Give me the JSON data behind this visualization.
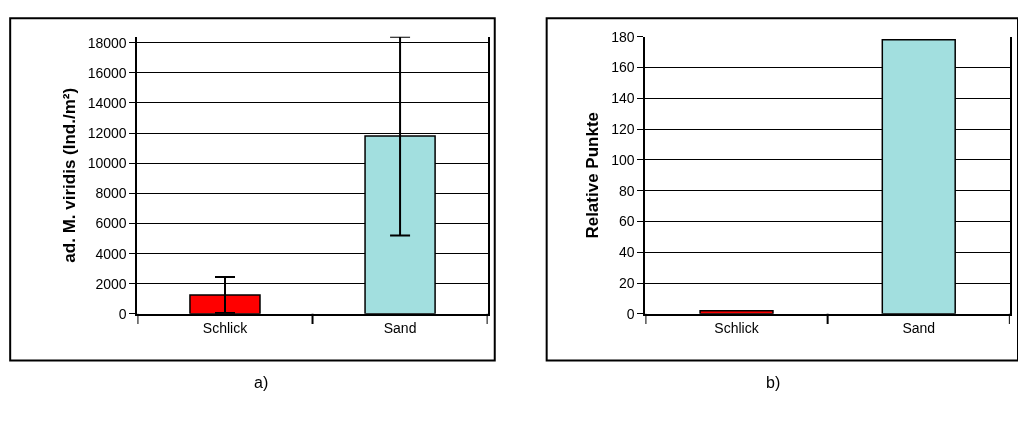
{
  "chart_data": [
    {
      "type": "bar",
      "categories": [
        "Schlick",
        "Sand"
      ],
      "ylabel": "ad. M. viridis (Ind./m²)",
      "colors": [
        "#ff0000",
        "#a2dfdf"
      ],
      "values": [
        1250,
        11800
      ],
      "errors": [
        1200,
        6600
      ],
      "ylim": [
        0,
        18400
      ],
      "yticks": [
        0,
        2000,
        4000,
        6000,
        8000,
        10000,
        12000,
        14000,
        16000,
        18000
      ],
      "grid": "y",
      "legend": false,
      "annotations": [
        "a)"
      ]
    },
    {
      "type": "bar",
      "categories": [
        "Schlick",
        "Sand"
      ],
      "ylabel": "Relative Punkte",
      "colors": [
        "#ff0000",
        "#a2dfdf"
      ],
      "values": [
        2,
        178
      ],
      "ylim": [
        0,
        180
      ],
      "yticks": [
        0,
        20,
        40,
        60,
        80,
        100,
        120,
        140,
        160,
        180
      ],
      "grid": "y",
      "legend": false,
      "annotations": [
        "b)"
      ]
    }
  ]
}
